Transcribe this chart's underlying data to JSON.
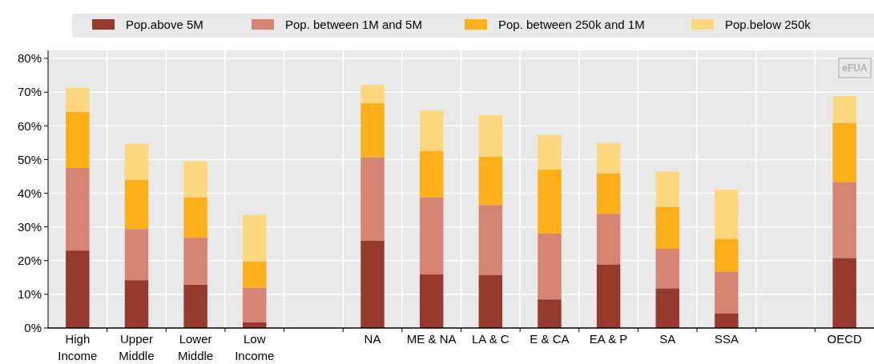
{
  "chart_data": {
    "type": "bar",
    "stacked": true,
    "grid": true,
    "legend": "top",
    "categories": [
      "High\nIncome",
      "Upper\nMiddle",
      "Lower\nMiddle",
      "Low\nIncome",
      null,
      "NA",
      "ME & NA",
      "LA &  C",
      "E & CA",
      "EA & P",
      "SA",
      "SSA",
      null,
      "OECD"
    ],
    "series": [
      {
        "name": "Pop.above 5M",
        "color": "#953a2d",
        "values": [
          23,
          14.2,
          12.9,
          1.7,
          null,
          26,
          15.9,
          15.8,
          8.5,
          18.9,
          11.8,
          4.4,
          null,
          20.8
        ]
      },
      {
        "name": "Pop. between 1M and 5M",
        "color": "#d68473",
        "values": [
          24.5,
          15.2,
          13.9,
          10.3,
          null,
          24.7,
          22.9,
          20.7,
          19.5,
          15,
          11.7,
          12.4,
          null,
          22.5
        ]
      },
      {
        "name": "Pop. between 250k and 1M",
        "color": "#fbb01a",
        "values": [
          16.7,
          14.6,
          11.9,
          7.7,
          null,
          16,
          13.8,
          14.4,
          19.1,
          12,
          12.5,
          9.7,
          null,
          17.6
        ]
      },
      {
        "name": "Pop.below 250k",
        "color": "#fed87f",
        "values": [
          7.1,
          10.7,
          10.8,
          13.9,
          null,
          5.4,
          12,
          12.2,
          10.2,
          9,
          10.4,
          14.6,
          null,
          7.9
        ]
      }
    ],
    "ylim": [
      0,
      80
    ],
    "yticks": [
      {
        "value": 0,
        "label": "0%"
      },
      {
        "value": 10,
        "label": "10%"
      },
      {
        "value": 20,
        "label": "20%"
      },
      {
        "value": 30,
        "label": "30%"
      },
      {
        "value": 40,
        "label": "40%"
      },
      {
        "value": 50,
        "label": "50%"
      },
      {
        "value": 60,
        "label": "60%"
      },
      {
        "value": 70,
        "label": "70%"
      },
      {
        "value": 80,
        "label": "80%"
      }
    ],
    "annotations": [
      "eFUA"
    ]
  }
}
